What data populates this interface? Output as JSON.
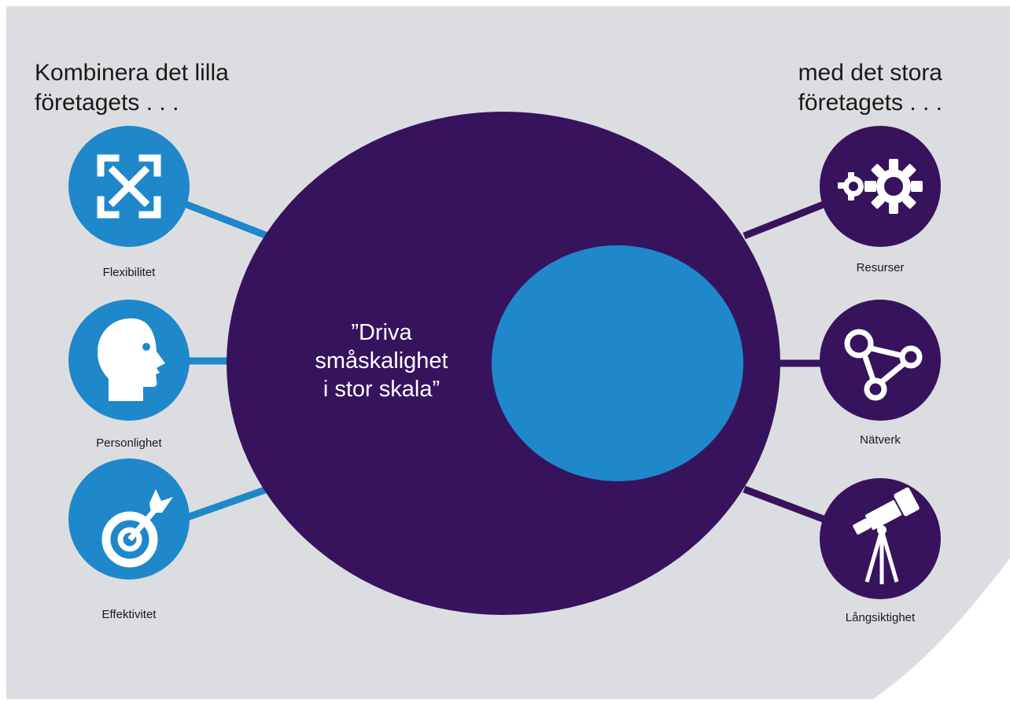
{
  "colors": {
    "background": "#dcdde0",
    "purple": "#37135e",
    "blue": "#1e88cb",
    "white": "#ffffff",
    "text": "#1a1a1a"
  },
  "heading_left": {
    "line1": "Kombinera det lilla",
    "line2": "företagets . . ."
  },
  "heading_right": {
    "line1": "med det stora",
    "line2": "företagets . . ."
  },
  "center": {
    "quote_line1": "”Driva",
    "quote_line2": "småskalighet",
    "quote_line3": "i stor skala”"
  },
  "left_items": [
    {
      "label": "Flexibilitet",
      "icon": "expand-arrows-icon"
    },
    {
      "label": "Personlighet",
      "icon": "head-profile-icon"
    },
    {
      "label": "Effektivitet",
      "icon": "target-arrow-icon"
    }
  ],
  "right_items": [
    {
      "label": "Resurser",
      "icon": "gears-icon"
    },
    {
      "label": "Nätverk",
      "icon": "network-icon"
    },
    {
      "label": "Långsiktighet",
      "icon": "telescope-icon"
    }
  ]
}
